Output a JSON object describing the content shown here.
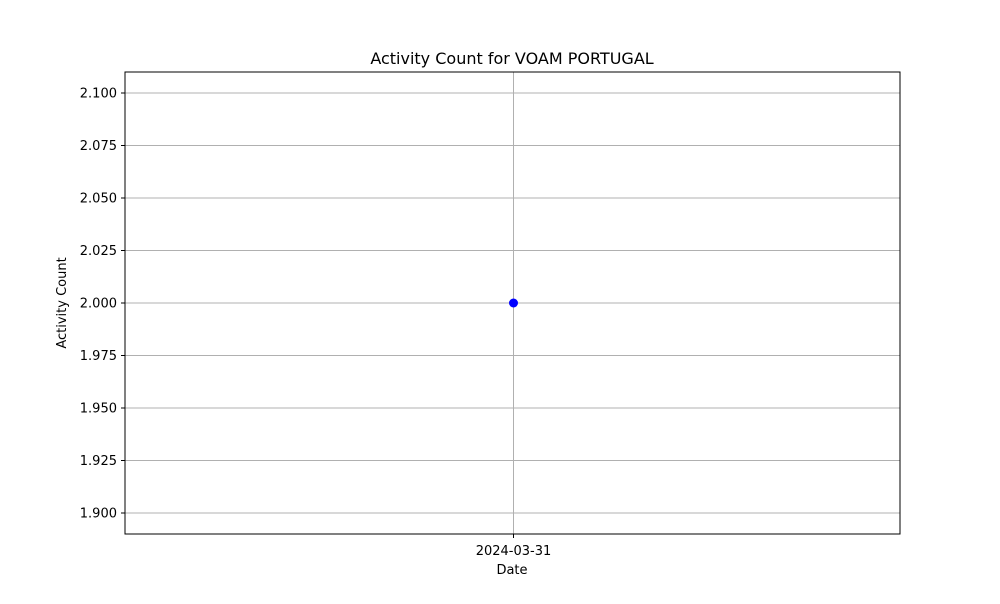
{
  "chart_data": {
    "type": "line",
    "title": "Activity Count for VOAM PORTUGAL",
    "xlabel": "Date",
    "ylabel": "Activity Count",
    "x": [
      "2024-03-31"
    ],
    "series": [
      {
        "values": [
          2.0
        ]
      }
    ],
    "x_ticks": [
      "2024-03-31"
    ],
    "y_ticks": [
      "1.900",
      "1.925",
      "1.950",
      "1.975",
      "2.000",
      "2.025",
      "2.050",
      "2.075",
      "2.100"
    ],
    "ylim": [
      1.89,
      2.11
    ],
    "grid": true,
    "marker": "circle",
    "colors": {
      "series": "#0000ff",
      "grid": "#b0b0b0",
      "axes": "#000000"
    }
  }
}
